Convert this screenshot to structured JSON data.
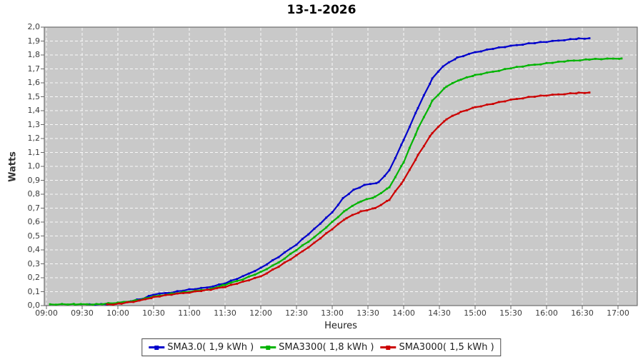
{
  "title": "13-1-2026",
  "colors": {
    "plot_bg": "#c9c9c9",
    "plot_border": "#6f6f6f",
    "grid": "#ffffff",
    "tick": "#666666",
    "blue": "#0000cc",
    "green": "#00b400",
    "red": "#cc0000"
  },
  "y_axis": {
    "label": "Watts",
    "tick_labels": [
      "0,0",
      "0,1",
      "0,2",
      "0,3",
      "0,4",
      "0,5",
      "0,6",
      "0,7",
      "0,8",
      "0,9",
      "1,0",
      "1,1",
      "1,2",
      "1,3",
      "1,4",
      "1,5",
      "1,6",
      "1,7",
      "1,8",
      "1,9",
      "2,0"
    ]
  },
  "x_axis": {
    "label": "Heures",
    "tick_labels": [
      "09:00",
      "09:30",
      "10:00",
      "10:30",
      "11:00",
      "11:30",
      "12:00",
      "12:30",
      "13:00",
      "13:30",
      "14:00",
      "14:30",
      "15:00",
      "15:30",
      "16:00",
      "16:30",
      "17:00"
    ]
  },
  "legend": {
    "items": [
      {
        "label": "SMA3.0( 1,9 kWh )",
        "color": "#0000cc"
      },
      {
        "label": "SMA3300( 1,8 kWh )",
        "color": "#00b400"
      },
      {
        "label": "SMA3000( 1,5 kWh )",
        "color": "#cc0000"
      }
    ]
  },
  "chart_data": {
    "type": "line",
    "title": "13-1-2026",
    "xlabel": "Heures",
    "ylabel": "Watts",
    "ylim": [
      0,
      2
    ],
    "xlim_hours": [
      8.97,
      17.27
    ],
    "x_tick_step_hours": 0.5,
    "y_tick_step": 0.1,
    "grid": true,
    "legend_position": "bottom",
    "series": [
      {
        "name": "SMA3.0( 1,9 kWh )",
        "color": "#0000cc",
        "points": [
          [
            9.6,
            0.005
          ],
          [
            9.9,
            0.01
          ],
          [
            10.1,
            0.025
          ],
          [
            10.35,
            0.05
          ],
          [
            10.5,
            0.08
          ],
          [
            10.75,
            0.095
          ],
          [
            11,
            0.115
          ],
          [
            11.25,
            0.13
          ],
          [
            11.5,
            0.16
          ],
          [
            11.75,
            0.21
          ],
          [
            12,
            0.27
          ],
          [
            12.25,
            0.35
          ],
          [
            12.5,
            0.44
          ],
          [
            12.75,
            0.55
          ],
          [
            13,
            0.67
          ],
          [
            13.15,
            0.77
          ],
          [
            13.3,
            0.83
          ],
          [
            13.45,
            0.865
          ],
          [
            13.65,
            0.885
          ],
          [
            13.8,
            0.97
          ],
          [
            14,
            1.19
          ],
          [
            14.2,
            1.42
          ],
          [
            14.4,
            1.63
          ],
          [
            14.55,
            1.72
          ],
          [
            14.75,
            1.78
          ],
          [
            15,
            1.82
          ],
          [
            15.25,
            1.845
          ],
          [
            15.5,
            1.865
          ],
          [
            15.75,
            1.882
          ],
          [
            16,
            1.895
          ],
          [
            16.25,
            1.908
          ],
          [
            16.45,
            1.917
          ],
          [
            16.6,
            1.92
          ]
        ]
      },
      {
        "name": "SMA3300( 1,8 kWh )",
        "color": "#00b400",
        "points": [
          [
            9.05,
            0.005
          ],
          [
            9.4,
            0.006
          ],
          [
            9.7,
            0.008
          ],
          [
            10,
            0.02
          ],
          [
            10.3,
            0.04
          ],
          [
            10.5,
            0.065
          ],
          [
            10.75,
            0.085
          ],
          [
            11,
            0.1
          ],
          [
            11.3,
            0.12
          ],
          [
            11.5,
            0.15
          ],
          [
            11.75,
            0.19
          ],
          [
            12,
            0.24
          ],
          [
            12.25,
            0.31
          ],
          [
            12.5,
            0.4
          ],
          [
            12.75,
            0.49
          ],
          [
            13,
            0.6
          ],
          [
            13.2,
            0.69
          ],
          [
            13.4,
            0.75
          ],
          [
            13.6,
            0.78
          ],
          [
            13.8,
            0.85
          ],
          [
            14,
            1.03
          ],
          [
            14.2,
            1.27
          ],
          [
            14.4,
            1.47
          ],
          [
            14.6,
            1.575
          ],
          [
            14.8,
            1.625
          ],
          [
            15,
            1.655
          ],
          [
            15.25,
            1.68
          ],
          [
            15.5,
            1.705
          ],
          [
            15.75,
            1.725
          ],
          [
            16,
            1.74
          ],
          [
            16.3,
            1.757
          ],
          [
            16.6,
            1.768
          ],
          [
            16.85,
            1.773
          ],
          [
            17.05,
            1.775
          ]
        ]
      },
      {
        "name": "SMA3000( 1,5 kWh )",
        "color": "#cc0000",
        "points": [
          [
            9.85,
            0.005
          ],
          [
            10.05,
            0.015
          ],
          [
            10.3,
            0.035
          ],
          [
            10.5,
            0.06
          ],
          [
            10.75,
            0.08
          ],
          [
            11,
            0.095
          ],
          [
            11.3,
            0.115
          ],
          [
            11.5,
            0.135
          ],
          [
            11.75,
            0.17
          ],
          [
            12,
            0.21
          ],
          [
            12.25,
            0.28
          ],
          [
            12.5,
            0.36
          ],
          [
            12.75,
            0.45
          ],
          [
            13,
            0.55
          ],
          [
            13.2,
            0.63
          ],
          [
            13.4,
            0.675
          ],
          [
            13.6,
            0.7
          ],
          [
            13.8,
            0.76
          ],
          [
            14,
            0.9
          ],
          [
            14.2,
            1.08
          ],
          [
            14.4,
            1.24
          ],
          [
            14.6,
            1.34
          ],
          [
            14.8,
            1.39
          ],
          [
            15,
            1.425
          ],
          [
            15.25,
            1.45
          ],
          [
            15.5,
            1.478
          ],
          [
            15.75,
            1.497
          ],
          [
            16,
            1.51
          ],
          [
            16.25,
            1.52
          ],
          [
            16.45,
            1.527
          ],
          [
            16.6,
            1.53
          ]
        ]
      }
    ]
  }
}
